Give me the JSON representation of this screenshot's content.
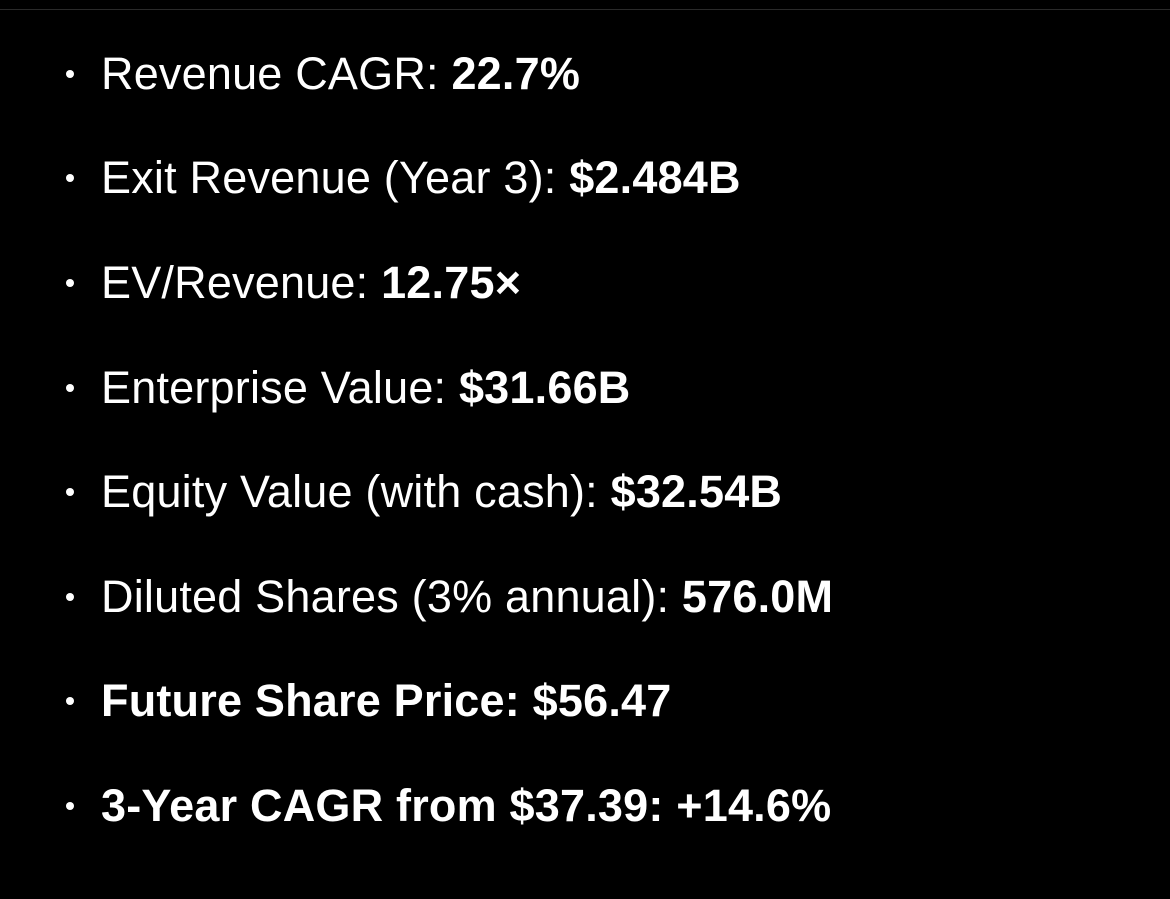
{
  "metrics": [
    {
      "label": "Revenue CAGR: ",
      "value": "22.7%"
    },
    {
      "label": "Exit Revenue (Year 3): ",
      "value": "$2.484B"
    },
    {
      "label": "EV/Revenue: ",
      "value": "12.75×"
    },
    {
      "label": "Enterprise Value: ",
      "value": "$31.66B"
    },
    {
      "label": "Equity Value (with cash): ",
      "value": "$32.54B"
    },
    {
      "label": "Diluted Shares (3% annual): ",
      "value": "576.0M"
    },
    {
      "label": "Future Share Price: ",
      "value": "$56.47"
    },
    {
      "label": "3-Year CAGR from $37.39: ",
      "value": "+14.6%"
    }
  ]
}
